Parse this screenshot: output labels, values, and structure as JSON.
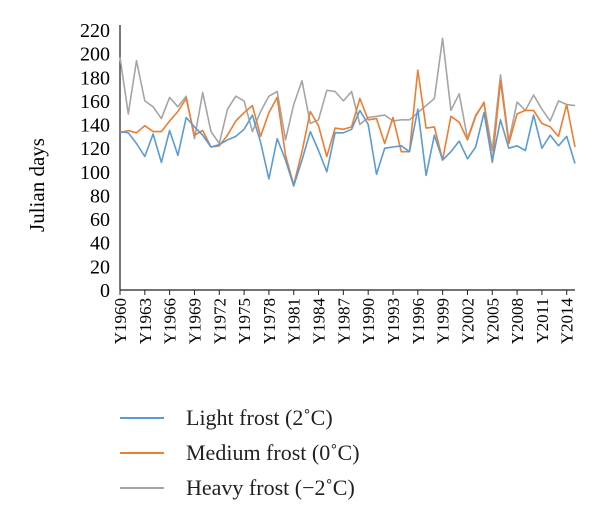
{
  "chart_data": {
    "type": "line",
    "ylabel": "Julian days",
    "xlabel": "",
    "ylim": [
      0,
      220
    ],
    "yticks": [
      "0",
      "20",
      "40",
      "60",
      "80",
      "100",
      "120",
      "140",
      "160",
      "180",
      "200",
      "220"
    ],
    "x": [
      "Y1960",
      "Y1961",
      "Y1962",
      "Y1963",
      "Y1964",
      "Y1965",
      "Y1966",
      "Y1967",
      "Y1968",
      "Y1969",
      "Y1970",
      "Y1971",
      "Y1972",
      "Y1973",
      "Y1974",
      "Y1975",
      "Y1976",
      "Y1977",
      "Y1978",
      "Y1979",
      "Y1980",
      "Y1981",
      "Y1982",
      "Y1983",
      "Y1984",
      "Y1985",
      "Y1986",
      "Y1987",
      "Y1988",
      "Y1989",
      "Y1990",
      "Y1991",
      "Y1992",
      "Y1993",
      "Y1994",
      "Y1995",
      "Y1996",
      "Y1997",
      "Y1998",
      "Y1999",
      "Y2000",
      "Y2001",
      "Y2002",
      "Y2003",
      "Y2004",
      "Y2005",
      "Y2006",
      "Y2007",
      "Y2008",
      "Y2009",
      "Y2010",
      "Y2011",
      "Y2012",
      "Y2013",
      "Y2014",
      "Y2015"
    ],
    "xtick_labels": [
      "Y1960",
      "Y1963",
      "Y1966",
      "Y1969",
      "Y1972",
      "Y1975",
      "Y1978",
      "Y1981",
      "Y1984",
      "Y1987",
      "Y1990",
      "Y1993",
      "Y1996",
      "Y1999",
      "Y2002",
      "Y2005",
      "Y2008",
      "Y2011",
      "Y2014"
    ],
    "series": [
      {
        "name": "Light frost (2˚C)",
        "color": "#5b9bd5",
        "values": [
          134,
          133,
          124,
          113,
          132,
          108,
          135,
          114,
          146,
          138,
          131,
          121,
          123,
          127,
          130,
          136,
          148,
          125,
          94,
          128,
          110,
          88,
          110,
          134,
          118,
          100,
          133,
          133,
          136,
          152,
          140,
          98,
          120,
          121,
          122,
          117,
          153,
          97,
          131,
          110,
          117,
          126,
          111,
          121,
          150,
          109,
          144,
          120,
          122,
          118,
          148,
          120,
          131,
          122,
          130,
          107
        ]
      },
      {
        "name": "Medium frost (0˚C)",
        "color": "#ed7d31",
        "values": [
          133,
          135,
          133,
          139,
          134,
          134,
          143,
          151,
          162,
          131,
          135,
          121,
          122,
          131,
          143,
          150,
          156,
          130,
          150,
          163,
          114,
          89,
          117,
          151,
          139,
          113,
          137,
          136,
          138,
          162,
          144,
          145,
          124,
          146,
          117,
          117,
          186,
          137,
          138,
          110,
          147,
          142,
          127,
          147,
          159,
          108,
          177,
          124,
          149,
          152,
          152,
          141,
          138,
          130,
          157,
          121
        ]
      },
      {
        "name": "Heavy frost (−2˚C)",
        "color": "#a5a5a5",
        "values": [
          197,
          149,
          194,
          160,
          155,
          145,
          163,
          155,
          164,
          128,
          167,
          134,
          124,
          153,
          164,
          160,
          134,
          151,
          164,
          168,
          127,
          157,
          177,
          141,
          144,
          169,
          168,
          160,
          168,
          140,
          146,
          147,
          148,
          143,
          144,
          144,
          150,
          156,
          162,
          213,
          152,
          166,
          128,
          148,
          158,
          118,
          182,
          126,
          159,
          152,
          165,
          153,
          143,
          160,
          157,
          156
        ]
      }
    ]
  }
}
